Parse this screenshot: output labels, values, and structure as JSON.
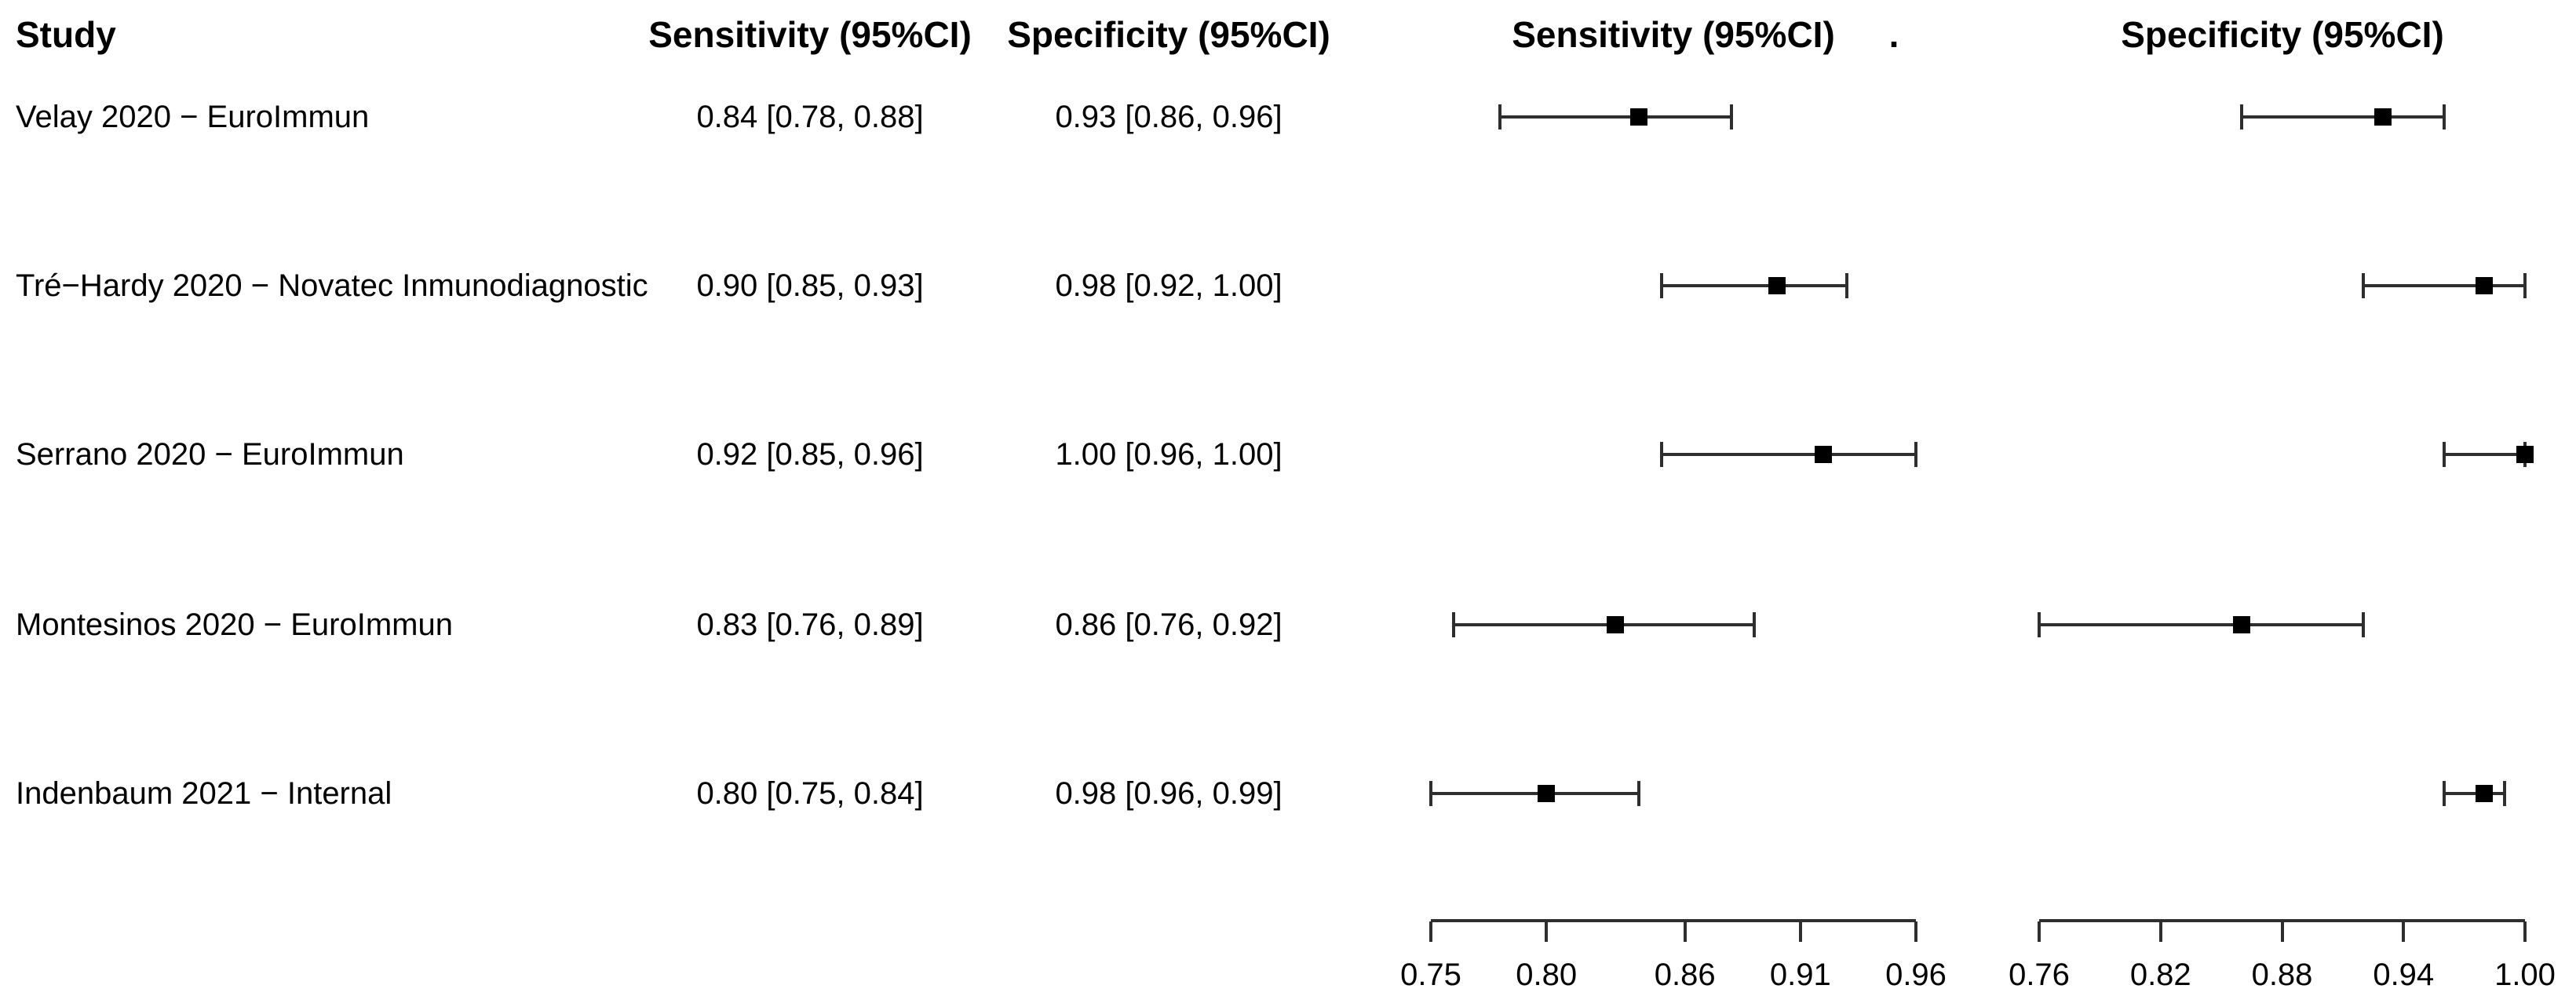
{
  "figure": {
    "columns": {
      "study": "Study",
      "sensitivity_text": "Sensitivity (95%CI)",
      "specificity_text": "Specificity (95%CI)"
    },
    "plot_headers": {
      "sensitivity": "Sensitivity (95%CI)",
      "specificity": "Specificity (95%CI)",
      "stray_dot": "."
    },
    "rows": [
      {
        "study": "Velay 2020 − EuroImmun",
        "sensitivity": "0.84 [0.78, 0.88]",
        "specificity": "0.93 [0.86, 0.96]"
      },
      {
        "study": "Tré−Hardy 2020 − Novatec Inmunodiagnostic",
        "sensitivity": "0.90 [0.85, 0.93]",
        "specificity": "0.98 [0.92, 1.00]"
      },
      {
        "study": "Serrano 2020 − EuroImmun",
        "sensitivity": "0.92 [0.85, 0.96]",
        "specificity": "1.00 [0.96, 1.00]"
      },
      {
        "study": "Montesinos 2020 − EuroImmun",
        "sensitivity": "0.83 [0.76, 0.89]",
        "specificity": "0.86 [0.76, 0.92]"
      },
      {
        "study": "Indenbaum 2021 − Internal",
        "sensitivity": "0.80 [0.75, 0.84]",
        "specificity": "0.98 [0.96, 0.99]"
      }
    ]
  },
  "chart_data": [
    {
      "type": "forest",
      "title": "Sensitivity (95%CI)",
      "xlabel": "",
      "xlim": [
        0.75,
        0.96
      ],
      "ticks": [
        0.75,
        0.8,
        0.86,
        0.91,
        0.96
      ],
      "tick_labels": [
        "0.75",
        "0.80",
        "0.86",
        "0.91",
        "0.96"
      ],
      "grid": false,
      "points": [
        {
          "study": "Velay 2020 − EuroImmun",
          "estimate": 0.84,
          "ci_low": 0.78,
          "ci_high": 0.88
        },
        {
          "study": "Tré−Hardy 2020 − Novatec Inmunodiagnostic",
          "estimate": 0.9,
          "ci_low": 0.85,
          "ci_high": 0.93
        },
        {
          "study": "Serrano 2020 − EuroImmun",
          "estimate": 0.92,
          "ci_low": 0.85,
          "ci_high": 0.96
        },
        {
          "study": "Montesinos 2020 − EuroImmun",
          "estimate": 0.83,
          "ci_low": 0.76,
          "ci_high": 0.89
        },
        {
          "study": "Indenbaum 2021 − Internal",
          "estimate": 0.8,
          "ci_low": 0.75,
          "ci_high": 0.84
        }
      ]
    },
    {
      "type": "forest",
      "title": "Specificity (95%CI)",
      "xlabel": "",
      "xlim": [
        0.76,
        1.0
      ],
      "ticks": [
        0.76,
        0.82,
        0.88,
        0.94,
        1.0
      ],
      "tick_labels": [
        "0.76",
        "0.82",
        "0.88",
        "0.94",
        "1.00"
      ],
      "grid": false,
      "points": [
        {
          "study": "Velay 2020 − EuroImmun",
          "estimate": 0.93,
          "ci_low": 0.86,
          "ci_high": 0.96
        },
        {
          "study": "Tré−Hardy 2020 − Novatec Inmunodiagnostic",
          "estimate": 0.98,
          "ci_low": 0.92,
          "ci_high": 1.0
        },
        {
          "study": "Serrano 2020 − EuroImmun",
          "estimate": 1.0,
          "ci_low": 0.96,
          "ci_high": 1.0
        },
        {
          "study": "Montesinos 2020 − EuroImmun",
          "estimate": 0.86,
          "ci_low": 0.76,
          "ci_high": 0.92
        },
        {
          "study": "Indenbaum 2021 − Internal",
          "estimate": 0.98,
          "ci_low": 0.96,
          "ci_high": 0.99
        }
      ]
    }
  ],
  "colors": {
    "background": "#ffffff",
    "text": "#000000",
    "ci_line": "#2e2e2e",
    "marker": "#000000"
  }
}
